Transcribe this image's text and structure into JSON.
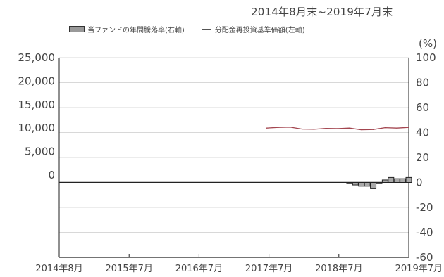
{
  "header": {
    "period": "2014年8月末~2019年7月末"
  },
  "legend": {
    "bar_label": "当ファンドの年間騰落率(右軸)",
    "line_label": "分配金再投資基準価額(左軸)"
  },
  "axes": {
    "right_unit": "(%)"
  },
  "colors": {
    "line": "#a3454f",
    "bar_fill": "#a8a8a8",
    "bar_stroke": "#222222",
    "grid": "#d8d8d8",
    "axis": "#222222"
  },
  "chart_data": {
    "type": "bar",
    "title": "",
    "xlabel": "",
    "ylabel": "",
    "x_range": [
      "2014-08",
      "2019-07"
    ],
    "xticks": [
      "2014年8月",
      "2015年7月",
      "2016年7月",
      "2017年7月",
      "2018年7月",
      "2019年7月"
    ],
    "left_axis": {
      "ylim": [
        -17500,
        25000
      ],
      "ticks": [
        "25,000",
        "20,000",
        "15,000",
        "10,000",
        "5,000",
        "0"
      ]
    },
    "right_axis": {
      "ylim": [
        -60,
        100
      ],
      "ticks": [
        "100",
        "80",
        "60",
        "40",
        "20",
        "0",
        "-20",
        "-40",
        "-60"
      ]
    },
    "grid": true,
    "legend_position": "top",
    "series": [
      {
        "name": "当ファンドの年間騰落率(右軸)",
        "type": "bar",
        "axis": "right",
        "x": [
          "2018-07",
          "2018-08",
          "2018-09",
          "2018-10",
          "2018-11",
          "2018-12",
          "2019-01",
          "2019-02",
          "2019-03",
          "2019-04",
          "2019-05",
          "2019-06",
          "2019-07"
        ],
        "values": [
          0,
          0,
          -1,
          -2,
          -3,
          -3,
          -5,
          -1,
          2,
          4,
          3,
          3,
          4
        ]
      },
      {
        "name": "分配金再投資基準価額(左軸)",
        "type": "line",
        "axis": "left",
        "x": [
          "2017-07",
          "2017-09",
          "2017-11",
          "2018-01",
          "2018-03",
          "2018-05",
          "2018-07",
          "2018-09",
          "2018-11",
          "2019-01",
          "2019-03",
          "2019-05",
          "2019-07"
        ],
        "values": [
          10000,
          10150,
          10200,
          9800,
          9750,
          9950,
          9900,
          10000,
          9650,
          9700,
          10100,
          10000,
          10150
        ]
      }
    ]
  }
}
